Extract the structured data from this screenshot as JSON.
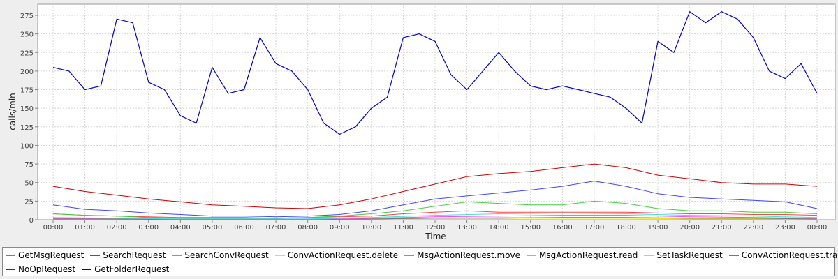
{
  "chart_data": {
    "type": "line",
    "title": "",
    "xlabel": "Time",
    "ylabel": "calls/min",
    "x_ticks": [
      "00:00",
      "01:00",
      "02:00",
      "03:00",
      "04:00",
      "05:00",
      "06:00",
      "07:00",
      "08:00",
      "09:00",
      "10:00",
      "11:00",
      "12:00",
      "13:00",
      "14:00",
      "15:00",
      "16:00",
      "17:00",
      "18:00",
      "19:00",
      "20:00",
      "21:00",
      "22:00",
      "23:00",
      "00:00"
    ],
    "y_ticks": [
      0,
      25,
      50,
      75,
      100,
      125,
      150,
      175,
      200,
      225,
      250,
      275
    ],
    "ylim": [
      0,
      290
    ],
    "xlim_hours": [
      0,
      24
    ],
    "grid": true,
    "legend_position": "bottom",
    "series": [
      {
        "name": "GetMsgRequest",
        "color": "#ff4444",
        "x_hours": [
          0,
          1,
          2,
          3,
          4,
          5,
          6,
          7,
          8,
          9,
          10,
          11,
          12,
          13,
          14,
          15,
          16,
          17,
          18,
          19,
          20,
          21,
          22,
          23,
          24
        ],
        "values": [
          8,
          6,
          5,
          4,
          3,
          3,
          3,
          2,
          3,
          4,
          5,
          8,
          10,
          12,
          10,
          10,
          10,
          10,
          10,
          9,
          8,
          8,
          7,
          7,
          6
        ]
      },
      {
        "name": "SearchRequest",
        "color": "#4444ff",
        "x_hours": [
          0,
          1,
          2,
          3,
          4,
          5,
          6,
          7,
          8,
          9,
          10,
          11,
          12,
          13,
          14,
          15,
          16,
          17,
          18,
          19,
          20,
          21,
          22,
          23,
          24
        ],
        "values": [
          20,
          14,
          12,
          9,
          7,
          5,
          5,
          4,
          5,
          7,
          12,
          20,
          28,
          32,
          36,
          40,
          45,
          52,
          45,
          35,
          30,
          28,
          26,
          24,
          15
        ]
      },
      {
        "name": "SearchConvRequest",
        "color": "#44cc44",
        "x_hours": [
          0,
          1,
          2,
          3,
          4,
          5,
          6,
          7,
          8,
          9,
          10,
          11,
          12,
          13,
          14,
          15,
          16,
          17,
          18,
          19,
          20,
          21,
          22,
          23,
          24
        ],
        "values": [
          8,
          6,
          5,
          3,
          2,
          2,
          2,
          2,
          3,
          5,
          8,
          12,
          18,
          24,
          22,
          20,
          20,
          25,
          22,
          15,
          12,
          12,
          10,
          10,
          8
        ]
      },
      {
        "name": "ConvActionRequest.delete",
        "color": "#e6e600",
        "x_hours": [
          0,
          2,
          4,
          6,
          8,
          10,
          12,
          14,
          16,
          18,
          20,
          22,
          24
        ],
        "values": [
          1,
          1,
          1,
          0,
          0,
          1,
          2,
          2,
          2,
          2,
          1,
          1,
          1
        ]
      },
      {
        "name": "MsgActionRequest.move",
        "color": "#ff44ff",
        "x_hours": [
          0,
          2,
          4,
          6,
          8,
          10,
          12,
          14,
          16,
          18,
          20,
          22,
          24
        ],
        "values": [
          2,
          1,
          1,
          1,
          1,
          2,
          4,
          5,
          6,
          6,
          4,
          3,
          2
        ]
      },
      {
        "name": "MsgActionRequest.read",
        "color": "#44dddd",
        "x_hours": [
          0,
          2,
          4,
          6,
          8,
          10,
          12,
          14,
          16,
          18,
          20,
          22,
          24
        ],
        "values": [
          3,
          2,
          1,
          1,
          1,
          3,
          6,
          8,
          9,
          8,
          6,
          5,
          3
        ]
      },
      {
        "name": "SetTaskRequest",
        "color": "#ffaaaa",
        "x_hours": [
          0,
          2,
          4,
          6,
          8,
          10,
          12,
          14,
          16,
          18,
          20,
          22,
          24
        ],
        "values": [
          1,
          1,
          0,
          0,
          0,
          1,
          2,
          3,
          3,
          3,
          2,
          2,
          1
        ]
      },
      {
        "name": "ConvActionRequest.trash",
        "color": "#777777",
        "x_hours": [
          0,
          2,
          4,
          6,
          8,
          10,
          12,
          14,
          16,
          18,
          20,
          22,
          24
        ],
        "values": [
          1,
          1,
          0,
          0,
          0,
          1,
          2,
          2,
          3,
          3,
          2,
          2,
          1
        ]
      },
      {
        "name": "NoOpRequest",
        "color": "#cc0000",
        "x_hours": [
          0,
          1,
          2,
          3,
          4,
          5,
          6,
          7,
          8,
          9,
          10,
          11,
          12,
          13,
          14,
          15,
          16,
          17,
          18,
          19,
          20,
          21,
          22,
          23,
          24
        ],
        "values": [
          45,
          38,
          33,
          28,
          24,
          20,
          18,
          16,
          15,
          20,
          28,
          38,
          48,
          58,
          62,
          65,
          70,
          75,
          70,
          60,
          55,
          50,
          48,
          48,
          45
        ]
      },
      {
        "name": "GetFolderRequest",
        "color": "#0000cc",
        "x_hours": [
          0,
          0.5,
          1,
          1.5,
          2,
          2.5,
          3,
          3.5,
          4,
          4.5,
          5,
          5.5,
          6,
          6.5,
          7,
          7.5,
          8,
          8.5,
          9,
          9.5,
          10,
          10.5,
          11,
          11.5,
          12,
          12.5,
          13,
          13.5,
          14,
          14.5,
          15,
          15.5,
          16,
          16.5,
          17,
          17.5,
          18,
          18.5,
          19,
          19.5,
          20,
          20.5,
          21,
          21.5,
          22,
          22.5,
          23,
          23.5,
          24
        ],
        "values": [
          205,
          200,
          175,
          180,
          270,
          265,
          185,
          175,
          140,
          130,
          205,
          170,
          175,
          245,
          210,
          200,
          175,
          130,
          115,
          125,
          150,
          165,
          245,
          250,
          240,
          195,
          175,
          200,
          225,
          200,
          180,
          175,
          180,
          175,
          170,
          165,
          150,
          130,
          240,
          225,
          280,
          265,
          280,
          270,
          245,
          200,
          190,
          210,
          170
        ]
      }
    ]
  }
}
